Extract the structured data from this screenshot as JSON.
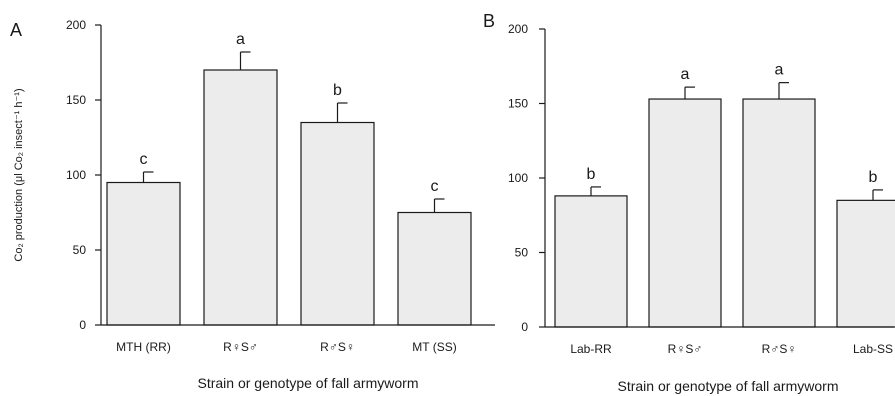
{
  "chart_data": [
    {
      "type": "bar",
      "panel_label": "A",
      "categories": [
        "MTH (RR)",
        "R♀S♂",
        "R♂S♀",
        "MT (SS)"
      ],
      "values": [
        95,
        170,
        135,
        75
      ],
      "errors": [
        7,
        12,
        13,
        9
      ],
      "significance": [
        "c",
        "a",
        "b",
        "c"
      ],
      "xlabel": "Strain or genotype of fall armyworm",
      "ylabel": "Co₂ production (μl Co₂ insect⁻¹ h⁻¹)",
      "ylim": [
        0,
        200
      ],
      "yticks": [
        0,
        50,
        100,
        150,
        200
      ],
      "grid": false
    },
    {
      "type": "bar",
      "panel_label": "B",
      "categories": [
        "Lab-RR",
        "R♀S♂",
        "R♂S♀",
        "Lab-SS"
      ],
      "values": [
        88,
        153,
        153,
        85
      ],
      "errors": [
        6,
        8,
        11,
        7
      ],
      "significance": [
        "b",
        "a",
        "a",
        "b"
      ],
      "xlabel": "Strain or genotype of fall armyworm",
      "ylabel": "",
      "ylim": [
        0,
        200
      ],
      "yticks": [
        0,
        50,
        100,
        150,
        200
      ],
      "grid": false
    }
  ],
  "colors": {
    "bar_fill": "#ececec",
    "stroke": "#1a1a1a"
  }
}
